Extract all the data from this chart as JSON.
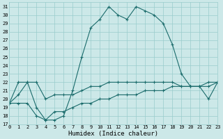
{
  "title": "",
  "xlabel": "Humidex (Indice chaleur)",
  "background_color": "#cce8e8",
  "grid_color": "#99cccc",
  "line_color": "#1a6b6b",
  "x_ticks": [
    0,
    1,
    2,
    3,
    4,
    5,
    6,
    7,
    8,
    9,
    10,
    11,
    12,
    13,
    14,
    15,
    16,
    17,
    18,
    19,
    20,
    21,
    22,
    23
  ],
  "ylim": [
    17,
    31.5
  ],
  "xlim": [
    0,
    23
  ],
  "curve1_y": [
    19.5,
    20.5,
    22.0,
    19.0,
    17.5,
    17.5,
    18.0,
    21.0,
    25.0,
    28.5,
    29.5,
    31.0,
    30.0,
    29.5,
    31.0,
    30.5,
    30.0,
    29.0,
    26.5,
    23.0,
    21.5,
    21.5,
    20.0,
    22.0
  ],
  "curve2_y": [
    19.5,
    22.0,
    22.0,
    22.0,
    20.0,
    20.5,
    20.5,
    20.5,
    21.0,
    21.5,
    21.5,
    22.0,
    22.0,
    22.0,
    22.0,
    22.0,
    22.0,
    22.0,
    22.0,
    21.5,
    21.5,
    21.5,
    21.5,
    22.0
  ],
  "curve3_y": [
    19.5,
    19.5,
    19.5,
    18.0,
    17.5,
    18.5,
    18.5,
    19.0,
    19.5,
    19.5,
    20.0,
    20.0,
    20.5,
    20.5,
    20.5,
    21.0,
    21.0,
    21.0,
    21.5,
    21.5,
    21.5,
    21.5,
    22.0,
    22.0
  ],
  "xlabel_fontsize": 6.5,
  "tick_fontsize": 5.0
}
